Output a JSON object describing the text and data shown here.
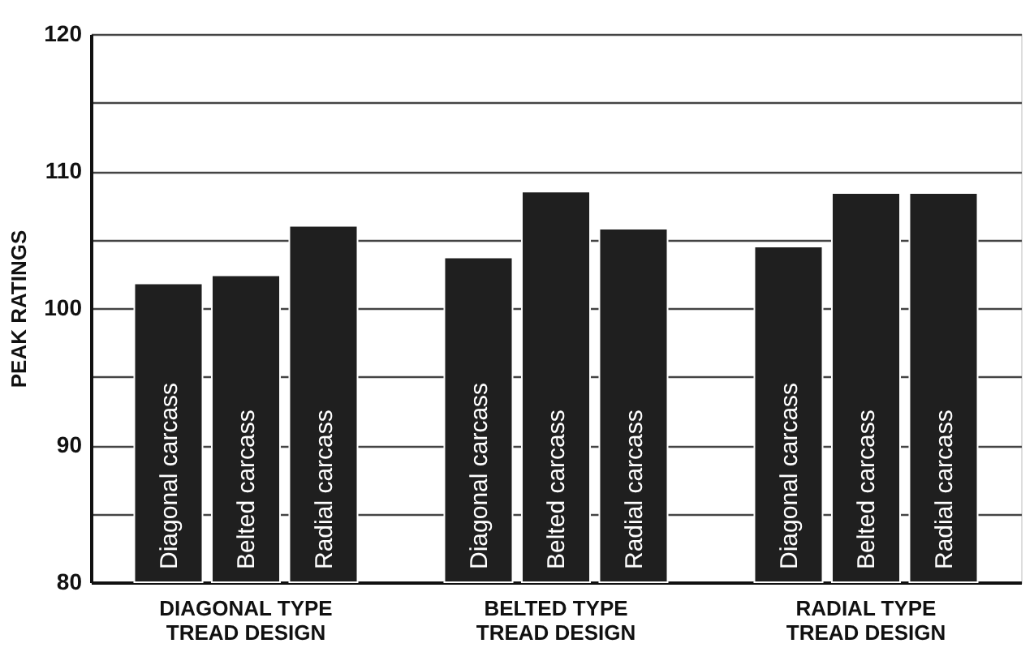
{
  "chart_data": {
    "type": "bar",
    "ylabel": "PEAK RATINGS",
    "categories": [
      "DIAGONAL TYPE\nTREAD DESIGN",
      "BELTED TYPE\nTREAD DESIGN",
      "RADIAL TYPE\nTREAD DESIGN"
    ],
    "series": [
      {
        "name": "Diagonal carcass",
        "color": "#1f1f1f",
        "values": [
          101.8,
          103.7,
          104.5
        ]
      },
      {
        "name": "Belted carcass",
        "color": "#1f1f1f",
        "values": [
          102.4,
          108.5,
          108.4
        ]
      },
      {
        "name": "Radial carcass",
        "color": "#1f1f1f",
        "values": [
          106.0,
          105.8,
          108.4
        ]
      }
    ],
    "ylim": [
      80,
      120
    ],
    "yticks": [
      80,
      {
        "value": 85,
        "label": null
      },
      90,
      {
        "value": 95,
        "label": null
      },
      100,
      {
        "value": 105,
        "label": null
      },
      110,
      {
        "value": 115,
        "label": null
      },
      120
    ],
    "grid": "y",
    "legend": false
  }
}
